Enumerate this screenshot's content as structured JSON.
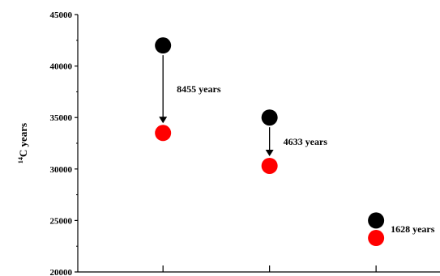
{
  "chart_data": {
    "type": "scatter",
    "ylabel_sup": "14",
    "ylabel_main": "C years",
    "ylim": [
      20000,
      45000
    ],
    "yticks": [
      20000,
      25000,
      30000,
      35000,
      40000,
      45000
    ],
    "ytick_labels": [
      "20000",
      "25000",
      "30000",
      "35000",
      "40000",
      "45000"
    ],
    "x_positions": [
      1,
      2,
      3
    ],
    "xlim": [
      0.2,
      3.6
    ],
    "series": [
      {
        "color": "#000000",
        "values": [
          42000,
          35000,
          25000
        ]
      },
      {
        "color": "#ff0000",
        "values": [
          33500,
          30300,
          23300
        ]
      }
    ],
    "annotations": [
      {
        "x": 1,
        "from": 42000,
        "to": 33500,
        "text": "8455 years",
        "arrow": true
      },
      {
        "x": 2,
        "from": 35000,
        "to": 30300,
        "text": "4633 years",
        "arrow": true
      },
      {
        "x": 3,
        "from": 25000,
        "to": 23300,
        "text": "1628 years",
        "arrow": false
      }
    ],
    "grid": false
  }
}
